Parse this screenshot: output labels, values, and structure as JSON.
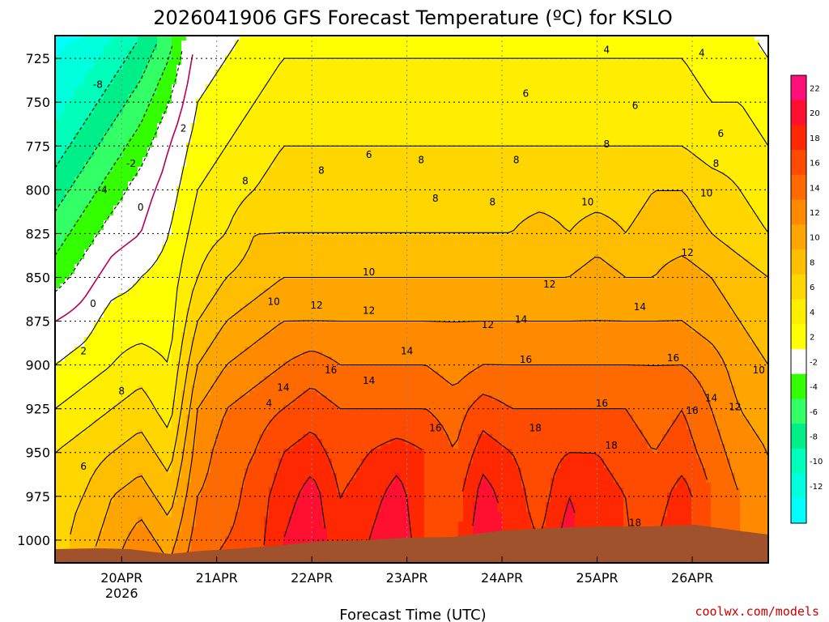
{
  "chart_data": {
    "type": "heatmap",
    "title": "2026041906 GFS Forecast Temperature (ºC) for KSLO",
    "xlabel": "Forecast Time (UTC)",
    "ylabel": "",
    "x_ticks": [
      "20APR",
      "21APR",
      "22APR",
      "23APR",
      "24APR",
      "25APR",
      "26APR"
    ],
    "x_tick_year": "2026",
    "xlim_days": [
      19.3,
      26.8
    ],
    "y_ticks": [
      725,
      750,
      775,
      800,
      825,
      850,
      875,
      900,
      925,
      950,
      975,
      1000
    ],
    "ylim": [
      1013,
      712
    ],
    "grid": true,
    "colorbar": {
      "levels": [
        22,
        20,
        18,
        16,
        14,
        12,
        10,
        8,
        6,
        4,
        2,
        -2,
        -4,
        -6,
        -8,
        -10,
        -12
      ],
      "colors": [
        "#ff0f7a",
        "#ff1030",
        "#ff2800",
        "#ff4b00",
        "#ff6a00",
        "#ff8a00",
        "#ffa500",
        "#ffbf00",
        "#ffd600",
        "#ffee00",
        "#ffff00",
        "#ffffff",
        "#33ff00",
        "#33ff66",
        "#00ee88",
        "#00ffbb",
        "#00ffdd",
        "#00ffff"
      ],
      "unit": "ºC"
    },
    "series": [
      {
        "x_day": 19.3,
        "temps": [
          -12,
          -11,
          -9,
          -7,
          -5,
          -3,
          0,
          2,
          4,
          6,
          7,
          7
        ]
      },
      {
        "x_day": 19.6,
        "temps": [
          -11,
          -9,
          -7,
          -5,
          -3,
          -1,
          1,
          3,
          5,
          7,
          8,
          9
        ]
      },
      {
        "x_day": 19.9,
        "temps": [
          -9,
          -7,
          -5,
          -3,
          -1,
          1,
          3,
          4,
          6,
          8,
          10,
          11
        ]
      },
      {
        "x_day": 20.2,
        "temps": [
          -7,
          -5,
          -3,
          -1,
          0,
          2,
          3,
          5,
          7,
          9,
          11,
          13
        ]
      },
      {
        "x_day": 20.5,
        "temps": [
          -4,
          -2,
          0,
          1,
          2,
          3,
          3,
          4,
          5,
          7,
          9,
          11
        ]
      },
      {
        "x_day": 20.8,
        "temps": [
          1,
          2,
          3,
          4,
          5,
          6,
          8,
          10,
          12,
          13,
          14,
          15
        ]
      },
      {
        "x_day": 21.1,
        "temps": [
          2,
          3,
          4,
          5,
          6,
          8,
          10,
          12,
          14,
          15,
          15,
          16
        ]
      },
      {
        "x_day": 21.4,
        "temps": [
          3,
          4,
          5,
          6,
          8,
          9,
          11,
          13,
          15,
          16,
          17,
          17
        ]
      },
      {
        "x_day": 21.7,
        "temps": [
          4,
          5,
          6,
          7,
          8,
          10,
          12,
          14,
          16,
          18,
          19,
          20
        ]
      },
      {
        "x_day": 22.0,
        "temps": [
          4,
          5,
          6,
          7,
          8,
          10,
          12,
          15,
          17,
          19,
          21,
          22
        ]
      },
      {
        "x_day": 22.3,
        "temps": [
          4,
          5,
          6,
          7,
          8,
          10,
          12,
          14,
          16,
          17,
          18,
          18
        ]
      },
      {
        "x_day": 22.6,
        "temps": [
          4,
          5,
          6,
          7,
          8,
          10,
          12,
          14,
          16,
          18,
          19,
          20
        ]
      },
      {
        "x_day": 22.9,
        "temps": [
          4,
          5,
          6,
          7,
          8,
          10,
          12,
          14,
          16,
          19,
          21,
          22
        ]
      },
      {
        "x_day": 23.2,
        "temps": [
          4,
          5,
          6,
          7,
          8,
          10,
          12,
          14,
          16,
          18,
          18,
          18
        ]
      },
      {
        "x_day": 23.5,
        "temps": [
          4,
          5,
          6,
          7,
          8,
          10,
          12,
          13,
          15,
          16,
          17,
          17
        ]
      },
      {
        "x_day": 23.8,
        "temps": [
          4,
          5,
          6,
          7,
          8,
          10,
          12,
          14,
          17,
          19,
          21,
          22
        ]
      },
      {
        "x_day": 24.1,
        "temps": [
          4,
          5,
          6,
          7,
          8,
          10,
          12,
          14,
          16,
          18,
          19,
          19
        ]
      },
      {
        "x_day": 24.4,
        "temps": [
          4,
          5,
          6,
          7,
          9,
          10,
          12,
          14,
          16,
          17,
          17,
          18
        ]
      },
      {
        "x_day": 24.7,
        "temps": [
          4,
          5,
          6,
          7,
          8,
          10,
          12,
          14,
          16,
          18,
          20,
          21
        ]
      },
      {
        "x_day": 25.0,
        "temps": [
          4,
          5,
          6,
          7,
          9,
          11,
          12,
          14,
          16,
          18,
          19,
          18
        ]
      },
      {
        "x_day": 25.3,
        "temps": [
          4,
          5,
          6,
          7,
          8,
          10,
          12,
          14,
          16,
          17,
          18,
          18
        ]
      },
      {
        "x_day": 25.6,
        "temps": [
          4,
          5,
          6,
          8,
          9,
          10,
          12,
          14,
          15,
          16,
          17,
          18
        ]
      },
      {
        "x_day": 25.9,
        "temps": [
          4,
          5,
          6,
          8,
          9,
          11,
          12,
          14,
          16,
          17,
          19,
          19
        ]
      },
      {
        "x_day": 26.2,
        "temps": [
          3,
          4,
          5,
          7,
          8,
          10,
          11,
          13,
          14,
          15,
          16,
          16
        ]
      },
      {
        "x_day": 26.5,
        "temps": [
          3,
          4,
          5,
          6,
          7,
          9,
          10,
          11,
          12,
          13,
          14,
          14
        ]
      },
      {
        "x_day": 26.8,
        "temps": [
          2,
          3,
          4,
          5,
          6,
          8,
          9,
          10,
          11,
          12,
          12,
          12
        ]
      }
    ],
    "contour_labels": [
      {
        "text": "-8",
        "x_day": 19.75,
        "p": 740
      },
      {
        "text": "-4",
        "x_day": 19.8,
        "p": 800
      },
      {
        "text": "-2",
        "x_day": 20.1,
        "p": 785
      },
      {
        "text": "0",
        "x_day": 20.2,
        "p": 810
      },
      {
        "text": "0",
        "x_day": 19.7,
        "p": 865
      },
      {
        "text": "2",
        "x_day": 20.65,
        "p": 765
      },
      {
        "text": "2",
        "x_day": 19.6,
        "p": 892
      },
      {
        "text": "4",
        "x_day": 21.55,
        "p": 922
      },
      {
        "text": "8",
        "x_day": 20.0,
        "p": 915
      },
      {
        "text": "6",
        "x_day": 19.6,
        "p": 958
      },
      {
        "text": "8",
        "x_day": 21.3,
        "p": 795
      },
      {
        "text": "8",
        "x_day": 22.1,
        "p": 789
      },
      {
        "text": "6",
        "x_day": 22.6,
        "p": 780
      },
      {
        "text": "8",
        "x_day": 23.15,
        "p": 783
      },
      {
        "text": "8",
        "x_day": 23.3,
        "p": 805
      },
      {
        "text": "8",
        "x_day": 23.9,
        "p": 807
      },
      {
        "text": "8",
        "x_day": 24.15,
        "p": 783
      },
      {
        "text": "6",
        "x_day": 24.25,
        "p": 745
      },
      {
        "text": "4",
        "x_day": 25.1,
        "p": 720
      },
      {
        "text": "4",
        "x_day": 26.1,
        "p": 722
      },
      {
        "text": "6",
        "x_day": 25.4,
        "p": 752
      },
      {
        "text": "6",
        "x_day": 26.3,
        "p": 768
      },
      {
        "text": "8",
        "x_day": 25.1,
        "p": 774
      },
      {
        "text": "8",
        "x_day": 26.25,
        "p": 785
      },
      {
        "text": "10",
        "x_day": 24.9,
        "p": 807
      },
      {
        "text": "10",
        "x_day": 26.15,
        "p": 802
      },
      {
        "text": "12",
        "x_day": 25.95,
        "p": 836
      },
      {
        "text": "12",
        "x_day": 24.5,
        "p": 854
      },
      {
        "text": "10",
        "x_day": 22.6,
        "p": 847
      },
      {
        "text": "10",
        "x_day": 21.6,
        "p": 864
      },
      {
        "text": "12",
        "x_day": 22.05,
        "p": 866
      },
      {
        "text": "12",
        "x_day": 22.6,
        "p": 869
      },
      {
        "text": "12",
        "x_day": 23.85,
        "p": 877
      },
      {
        "text": "14",
        "x_day": 24.2,
        "p": 874
      },
      {
        "text": "14",
        "x_day": 25.45,
        "p": 867
      },
      {
        "text": "14",
        "x_day": 23.0,
        "p": 892
      },
      {
        "text": "16",
        "x_day": 24.25,
        "p": 897
      },
      {
        "text": "16",
        "x_day": 25.8,
        "p": 896
      },
      {
        "text": "10",
        "x_day": 26.7,
        "p": 903
      },
      {
        "text": "16",
        "x_day": 22.2,
        "p": 903
      },
      {
        "text": "14",
        "x_day": 22.6,
        "p": 909
      },
      {
        "text": "14",
        "x_day": 21.7,
        "p": 913
      },
      {
        "text": "16",
        "x_day": 23.3,
        "p": 936
      },
      {
        "text": "18",
        "x_day": 24.35,
        "p": 936
      },
      {
        "text": "16",
        "x_day": 25.05,
        "p": 922
      },
      {
        "text": "18",
        "x_day": 25.15,
        "p": 946
      },
      {
        "text": "16",
        "x_day": 26.0,
        "p": 926
      },
      {
        "text": "14",
        "x_day": 26.2,
        "p": 919
      },
      {
        "text": "12",
        "x_day": 26.45,
        "p": 924
      },
      {
        "text": "18",
        "x_day": 25.4,
        "p": 990
      }
    ]
  },
  "credit": "coolwx.com/models"
}
